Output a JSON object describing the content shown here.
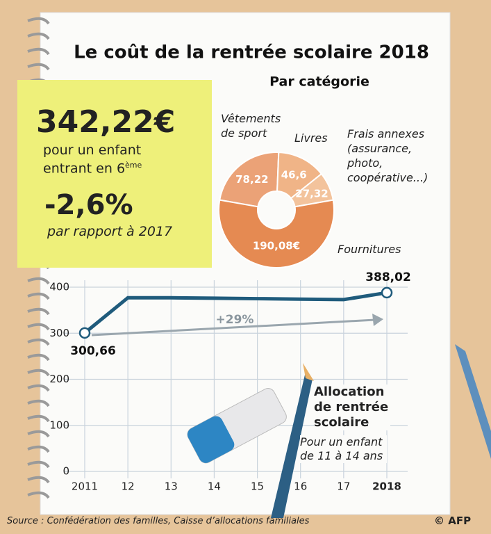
{
  "header": {
    "title": "Le coût de la rentrée scolaire 2018"
  },
  "note": {
    "amount": "342,22€",
    "amount_text": "pour un enfant entrant en 6",
    "amount_sup": "ème",
    "change": "-2,6%",
    "change_text": "par rapport à 2017"
  },
  "chart_data": [
    {
      "type": "pie",
      "title": "Par catégorie",
      "categories": [
        "Vêtements de sport",
        "Livres",
        "Frais annexes (assurance, photo, coopérative...)",
        "Fournitures"
      ],
      "values": [
        78.22,
        46.6,
        27.32,
        190.08
      ],
      "value_labels": [
        "78,22",
        "46,6",
        "27,32",
        "190,08€"
      ],
      "colors": [
        "#eba277",
        "#f0b487",
        "#f3c39c",
        "#e58a52"
      ]
    },
    {
      "type": "line",
      "x": [
        2011,
        2012,
        2013,
        2014,
        2015,
        2016,
        2017,
        2018
      ],
      "series": [
        {
          "name": "Allocation de rentrée scolaire",
          "color": "#1f5b7c",
          "values": [
            300.66,
            377,
            377,
            376,
            375,
            374,
            373,
            388.02
          ],
          "value_labels": [
            "300,66",
            null,
            null,
            null,
            null,
            null,
            null,
            "388,02"
          ]
        }
      ],
      "subtitle": "Pour un enfant de 11 à 14 ans",
      "annotation": "+29%",
      "xlim": [
        2011,
        2018
      ],
      "xticks": [
        {
          "value": 2011,
          "label": "2011"
        },
        {
          "value": 2012,
          "label": "12"
        },
        {
          "value": 2013,
          "label": "13"
        },
        {
          "value": 2014,
          "label": "14"
        },
        {
          "value": 2015,
          "label": "15"
        },
        {
          "value": 2016,
          "label": "16"
        },
        {
          "value": 2017,
          "label": "17"
        },
        {
          "value": 2018,
          "label": "2018"
        }
      ],
      "ylim": [
        0,
        400
      ],
      "yticks": [
        0,
        100,
        200,
        300,
        400
      ],
      "grid": true
    }
  ],
  "footer": {
    "source": "Source : Confédération des familles, Caisse d’allocations familiales",
    "credit": "© AFP"
  }
}
